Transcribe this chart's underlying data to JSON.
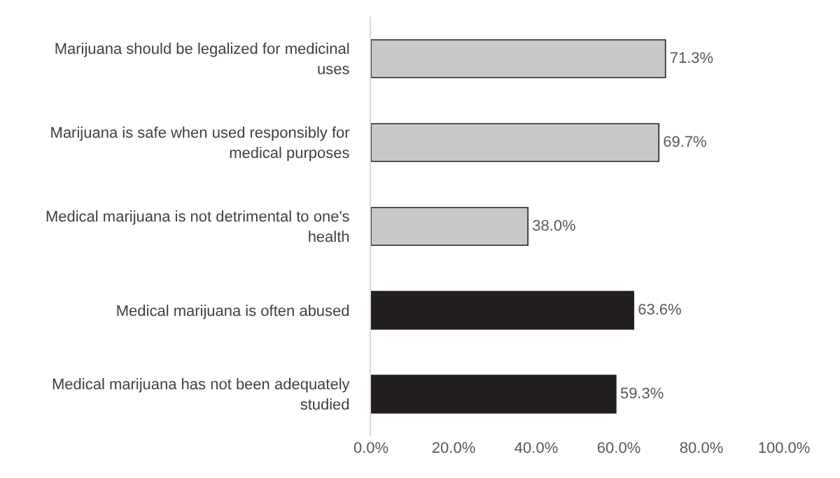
{
  "chart_data": {
    "type": "bar",
    "orientation": "horizontal",
    "categories": [
      "Marijuana should be legalized for medicinal uses",
      "Marijuana is safe when used responsibly for medical purposes",
      "Medical marijuana is not detrimental to one's health",
      "Medical marijuana is often abused",
      "Medical marijuana has not been adequately studied"
    ],
    "values": [
      71.3,
      69.7,
      38.0,
      63.6,
      59.3
    ],
    "value_labels": [
      "71.3%",
      "69.7%",
      "38.0%",
      "63.6%",
      "59.3%"
    ],
    "colors": [
      "#c8c8c8",
      "#c8c8c8",
      "#c8c8c8",
      "#231f20",
      "#231f20"
    ],
    "xlim": [
      0,
      100
    ],
    "xticks": [
      {
        "value": 0,
        "label": "0.0%"
      },
      {
        "value": 20,
        "label": "20.0%"
      },
      {
        "value": 40,
        "label": "40.0%"
      },
      {
        "value": 60,
        "label": "60.0%"
      },
      {
        "value": 80,
        "label": "80.0%"
      },
      {
        "value": 100,
        "label": "100.0%"
      }
    ],
    "grid": false,
    "legend": false
  }
}
